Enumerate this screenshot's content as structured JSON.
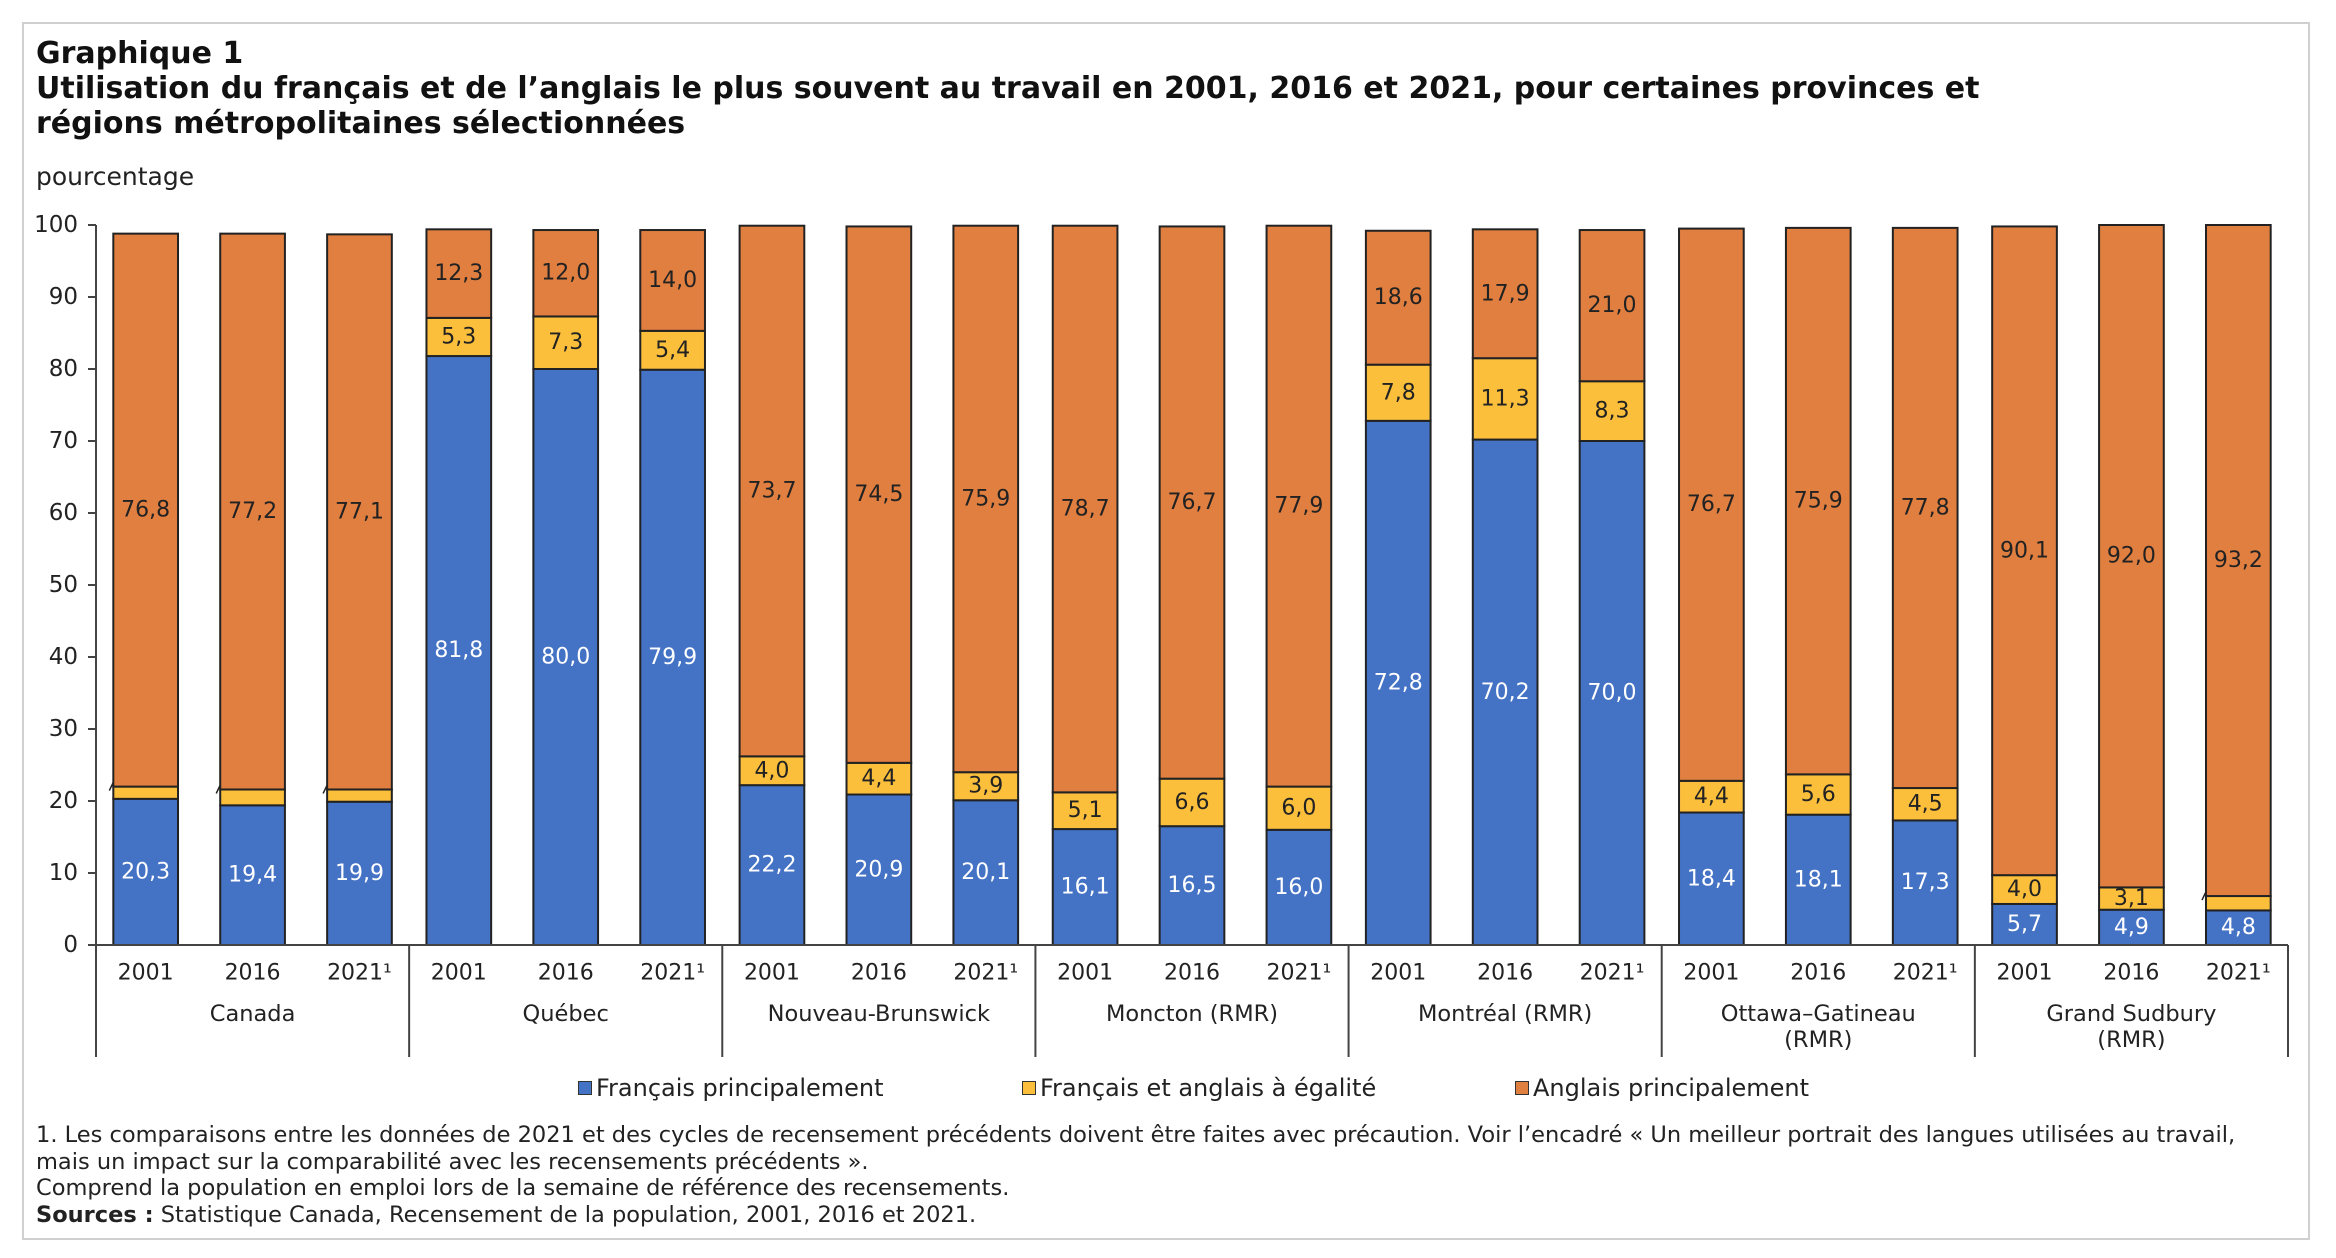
{
  "header": {
    "label": "Graphique 1",
    "title_line1": "Utilisation du français et de l’anglais le plus souvent au travail en 2001, 2016 et 2021, pour certaines provinces et",
    "title_line2": "régions métropolitaines sélectionnées"
  },
  "colors": {
    "fr": "#4472c4",
    "eq": "#fbbf3c",
    "en": "#e07f40"
  },
  "chart_data": {
    "type": "bar",
    "stacked": true,
    "ylabel": "pourcentage",
    "ylim": [
      0,
      100
    ],
    "yticks": [
      0,
      10,
      20,
      30,
      40,
      50,
      60,
      70,
      80,
      90,
      100
    ],
    "grid": false,
    "legend_position": "bottom",
    "series_names": [
      "Français principalement",
      "Français et anglais à égalité",
      "Anglais principalement"
    ],
    "groups": [
      {
        "name": [
          "Canada"
        ],
        "bars": [
          {
            "year": "2001",
            "fr": 20.3,
            "eq": 1.7,
            "en": 76.8,
            "fr_label": "20,3",
            "eq_label": "1,7",
            "en_label": "76,8"
          },
          {
            "year": "2016",
            "fr": 19.4,
            "eq": 2.2,
            "en": 77.2,
            "fr_label": "19,4",
            "eq_label": "2,2",
            "en_label": "77,2"
          },
          {
            "year": "2021¹",
            "fr": 19.9,
            "eq": 1.7,
            "en": 77.1,
            "fr_label": "19,9",
            "eq_label": "1,7",
            "en_label": "77,1"
          }
        ]
      },
      {
        "name": [
          "Québec"
        ],
        "bars": [
          {
            "year": "2001",
            "fr": 81.8,
            "eq": 5.3,
            "en": 12.3,
            "fr_label": "81,8",
            "eq_label": "5,3",
            "en_label": "12,3"
          },
          {
            "year": "2016",
            "fr": 80.0,
            "eq": 7.3,
            "en": 12.0,
            "fr_label": "80,0",
            "eq_label": "7,3",
            "en_label": "12,0"
          },
          {
            "year": "2021¹",
            "fr": 79.9,
            "eq": 5.4,
            "en": 14.0,
            "fr_label": "79,9",
            "eq_label": "5,4",
            "en_label": "14,0"
          }
        ]
      },
      {
        "name": [
          "Nouveau-Brunswick"
        ],
        "bars": [
          {
            "year": "2001",
            "fr": 22.2,
            "eq": 4.0,
            "en": 73.7,
            "fr_label": "22,2",
            "eq_label": "4,0",
            "en_label": "73,7"
          },
          {
            "year": "2016",
            "fr": 20.9,
            "eq": 4.4,
            "en": 74.5,
            "fr_label": "20,9",
            "eq_label": "4,4",
            "en_label": "74,5"
          },
          {
            "year": "2021¹",
            "fr": 20.1,
            "eq": 3.9,
            "en": 75.9,
            "fr_label": "20,1",
            "eq_label": "3,9",
            "en_label": "75,9"
          }
        ]
      },
      {
        "name": [
          "Moncton (RMR)"
        ],
        "bars": [
          {
            "year": "2001",
            "fr": 16.1,
            "eq": 5.1,
            "en": 78.7,
            "fr_label": "16,1",
            "eq_label": "5,1",
            "en_label": "78,7"
          },
          {
            "year": "2016",
            "fr": 16.5,
            "eq": 6.6,
            "en": 76.7,
            "fr_label": "16,5",
            "eq_label": "6,6",
            "en_label": "76,7"
          },
          {
            "year": "2021¹",
            "fr": 16.0,
            "eq": 6.0,
            "en": 77.9,
            "fr_label": "16,0",
            "eq_label": "6,0",
            "en_label": "77,9"
          }
        ]
      },
      {
        "name": [
          "Montréal (RMR)"
        ],
        "bars": [
          {
            "year": "2001",
            "fr": 72.8,
            "eq": 7.8,
            "en": 18.6,
            "fr_label": "72,8",
            "eq_label": "7,8",
            "en_label": "18,6"
          },
          {
            "year": "2016",
            "fr": 70.2,
            "eq": 11.3,
            "en": 17.9,
            "fr_label": "70,2",
            "eq_label": "11,3",
            "en_label": "17,9"
          },
          {
            "year": "2021¹",
            "fr": 70.0,
            "eq": 8.3,
            "en": 21.0,
            "fr_label": "70,0",
            "eq_label": "8,3",
            "en_label": "21,0"
          }
        ]
      },
      {
        "name": [
          "Ottawa–Gatineau",
          "(RMR)"
        ],
        "bars": [
          {
            "year": "2001",
            "fr": 18.4,
            "eq": 4.4,
            "en": 76.7,
            "fr_label": "18,4",
            "eq_label": "4,4",
            "en_label": "76,7"
          },
          {
            "year": "2016",
            "fr": 18.1,
            "eq": 5.6,
            "en": 75.9,
            "fr_label": "18,1",
            "eq_label": "5,6",
            "en_label": "75,9"
          },
          {
            "year": "2021¹",
            "fr": 17.3,
            "eq": 4.5,
            "en": 77.8,
            "fr_label": "17,3",
            "eq_label": "4,5",
            "en_label": "77,8"
          }
        ]
      },
      {
        "name": [
          "Grand Sudbury",
          "(RMR)"
        ],
        "bars": [
          {
            "year": "2001",
            "fr": 5.7,
            "eq": 4.0,
            "en": 90.1,
            "fr_label": "5,7",
            "eq_label": "4,0",
            "en_label": "90,1"
          },
          {
            "year": "2016",
            "fr": 4.9,
            "eq": 3.1,
            "en": 92.0,
            "fr_label": "4,9",
            "eq_label": "3,1",
            "en_label": "92,0"
          },
          {
            "year": "2021¹",
            "fr": 4.8,
            "eq": 2.0,
            "en": 93.2,
            "fr_label": "4,8",
            "eq_label": "2,0",
            "en_label": "93,2"
          }
        ]
      }
    ]
  },
  "notes": {
    "line1": "1. Les comparaisons entre les données de 2021 et des cycles de recensement précédents doivent être faites avec précaution. Voir l’encadré « Un meilleur portrait des langues utilisées au travail,",
    "line2": "mais un impact sur la comparabilité avec les recensements précédents ».",
    "line3": "Comprend la population en emploi lors de la semaine de référence des recensements.",
    "sources_label": "Sources :",
    "sources_text": " Statistique Canada, Recensement de la population, 2001, 2016 et 2021."
  }
}
